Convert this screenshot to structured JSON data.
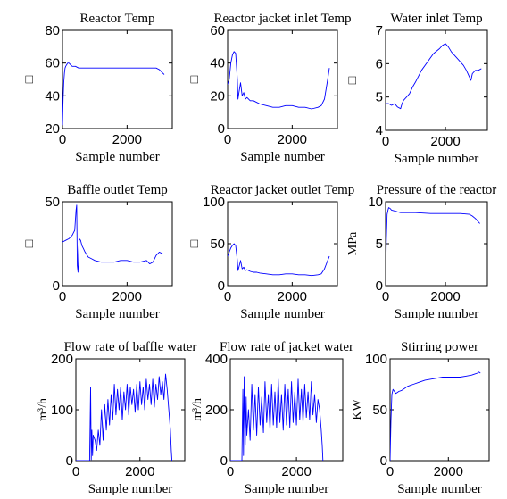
{
  "figure": {
    "series_color": "#0000ff",
    "axis_color": "#000000"
  },
  "chart_data": [
    {
      "type": "line",
      "title": "Reactor Temp",
      "xlabel": "Sample number",
      "ylabel": "□",
      "xlim": [
        0,
        3400
      ],
      "ylim": [
        20,
        80
      ],
      "xticks": [
        0,
        2000
      ],
      "yticks": [
        20,
        40,
        60,
        80
      ],
      "series": [
        {
          "x": [
            0,
            20,
            40,
            60,
            80,
            100,
            130,
            160,
            200,
            250,
            300,
            400,
            500,
            600,
            800,
            1000,
            1500,
            2000,
            2500,
            2900,
            3000,
            3050,
            3100,
            3150
          ],
          "y": [
            22,
            38,
            48,
            54,
            57,
            58,
            59,
            60,
            60,
            59,
            58,
            58,
            57,
            57,
            57,
            57,
            57,
            57,
            57,
            57,
            56,
            55,
            54,
            53
          ]
        }
      ]
    },
    {
      "type": "line",
      "title": "Reactor jacket inlet Temp",
      "xlabel": "Sample number",
      "ylabel": "□",
      "xlim": [
        0,
        3400
      ],
      "ylim": [
        0,
        60
      ],
      "xticks": [
        0,
        2000
      ],
      "yticks": [
        0,
        20,
        40,
        60
      ],
      "series": [
        {
          "x": [
            0,
            50,
            100,
            150,
            200,
            250,
            300,
            320,
            350,
            400,
            450,
            500,
            550,
            600,
            700,
            800,
            900,
            1000,
            1200,
            1400,
            1600,
            1800,
            2000,
            2200,
            2400,
            2600,
            2800,
            2900,
            3000,
            3050,
            3100,
            3150
          ],
          "y": [
            27,
            30,
            40,
            45,
            47,
            46,
            30,
            18,
            22,
            28,
            20,
            22,
            18,
            19,
            17,
            17,
            16,
            15,
            14,
            13,
            13,
            14,
            14,
            13,
            13,
            12,
            13,
            14,
            18,
            24,
            30,
            37
          ]
        }
      ]
    },
    {
      "type": "line",
      "title": "Water inlet Temp",
      "xlabel": "Sample number",
      "ylabel": "□",
      "xlim": [
        0,
        3400
      ],
      "ylim": [
        4,
        7
      ],
      "xticks": [
        0,
        2000
      ],
      "yticks": [
        4,
        5,
        6,
        7
      ],
      "series": [
        {
          "x": [
            0,
            100,
            200,
            300,
            400,
            500,
            550,
            600,
            700,
            800,
            900,
            1000,
            1200,
            1400,
            1600,
            1800,
            1900,
            2000,
            2100,
            2200,
            2400,
            2600,
            2700,
            2800,
            2850,
            2900,
            3000,
            3100,
            3200
          ],
          "y": [
            4.8,
            4.8,
            4.75,
            4.8,
            4.7,
            4.65,
            4.8,
            4.9,
            5.0,
            5.1,
            5.3,
            5.45,
            5.8,
            6.05,
            6.3,
            6.45,
            6.55,
            6.6,
            6.5,
            6.35,
            6.15,
            5.95,
            5.8,
            5.6,
            5.5,
            5.7,
            5.8,
            5.8,
            5.85
          ]
        }
      ]
    },
    {
      "type": "line",
      "title": "Baffle outlet Temp",
      "xlabel": "Sample number",
      "ylabel": "□",
      "xlim": [
        0,
        3400
      ],
      "ylim": [
        0,
        50
      ],
      "xticks": [
        0,
        2000
      ],
      "yticks": [
        0,
        50
      ],
      "series": [
        {
          "x": [
            0,
            100,
            200,
            300,
            380,
            420,
            440,
            460,
            480,
            500,
            520,
            560,
            600,
            650,
            700,
            800,
            900,
            1000,
            1200,
            1400,
            1600,
            1800,
            2000,
            2200,
            2400,
            2600,
            2700,
            2800,
            2900,
            3000,
            3100
          ],
          "y": [
            26,
            27,
            28,
            30,
            33,
            45,
            48,
            12,
            8,
            20,
            28,
            27,
            24,
            22,
            20,
            17,
            16,
            15,
            14,
            14,
            14,
            15,
            15,
            14,
            14,
            15,
            13,
            14,
            18,
            20,
            19
          ]
        }
      ]
    },
    {
      "type": "line",
      "title": "Reactor jacket outlet Temp",
      "xlabel": "Sample number",
      "ylabel": "□",
      "xlim": [
        0,
        3400
      ],
      "ylim": [
        0,
        100
      ],
      "xticks": [
        0,
        2000
      ],
      "yticks": [
        0,
        50,
        100
      ],
      "series": [
        {
          "x": [
            0,
            50,
            100,
            150,
            200,
            250,
            300,
            320,
            350,
            400,
            450,
            500,
            550,
            600,
            700,
            800,
            900,
            1000,
            1200,
            1400,
            1600,
            1800,
            2000,
            2200,
            2400,
            2600,
            2800,
            2900,
            3000,
            3050,
            3100,
            3150
          ],
          "y": [
            35,
            40,
            45,
            48,
            50,
            48,
            30,
            18,
            22,
            30,
            20,
            22,
            18,
            19,
            17,
            16,
            16,
            15,
            14,
            13,
            13,
            14,
            14,
            13,
            13,
            12,
            13,
            14,
            20,
            25,
            30,
            35
          ]
        }
      ]
    },
    {
      "type": "line",
      "title": "Pressure of the reactor",
      "xlabel": "Sample number",
      "ylabel": "MPa",
      "xlim": [
        0,
        3400
      ],
      "ylim": [
        0,
        10
      ],
      "xticks": [
        0,
        2000
      ],
      "yticks": [
        0,
        5,
        10
      ],
      "series": [
        {
          "x": [
            0,
            20,
            50,
            80,
            100,
            150,
            200,
            300,
            400,
            500,
            700,
            1000,
            1500,
            2000,
            2500,
            2800,
            2900,
            3000,
            3100,
            3150
          ],
          "y": [
            0,
            5,
            8.5,
            9.0,
            9.3,
            9.2,
            9.0,
            8.9,
            8.8,
            8.7,
            8.7,
            8.7,
            8.6,
            8.6,
            8.6,
            8.5,
            8.3,
            8.0,
            7.6,
            7.4
          ]
        }
      ]
    },
    {
      "type": "line",
      "title": "Flow rate of baffle water",
      "xlabel": "Sample number",
      "ylabel": "m³/h",
      "xlim": [
        0,
        3400
      ],
      "ylim": [
        0,
        200
      ],
      "xticks": [
        0,
        2000
      ],
      "yticks": [
        0,
        100,
        200
      ],
      "series": [
        {
          "x": [
            0,
            430,
            460,
            480,
            500,
            520,
            540,
            600,
            650,
            700,
            750,
            800,
            850,
            900,
            950,
            1000,
            1050,
            1100,
            1150,
            1200,
            1250,
            1300,
            1350,
            1400,
            1450,
            1500,
            1550,
            1600,
            1650,
            1700,
            1750,
            1800,
            1850,
            1900,
            1950,
            2000,
            2050,
            2100,
            2150,
            2200,
            2250,
            2300,
            2350,
            2400,
            2450,
            2500,
            2550,
            2600,
            2650,
            2700,
            2750,
            2800,
            2850,
            2900,
            2950,
            2980,
            3000
          ],
          "y": [
            0,
            0,
            145,
            2,
            60,
            10,
            50,
            40,
            20,
            60,
            30,
            100,
            40,
            110,
            60,
            120,
            70,
            130,
            80,
            150,
            90,
            140,
            100,
            145,
            80,
            135,
            100,
            150,
            90,
            145,
            110,
            140,
            95,
            150,
            100,
            155,
            110,
            145,
            100,
            160,
            120,
            150,
            110,
            160,
            105,
            150,
            120,
            165,
            130,
            155,
            120,
            170,
            140,
            100,
            60,
            20,
            0
          ]
        }
      ]
    },
    {
      "type": "line",
      "title": "Flow rate of jacket water",
      "xlabel": "Sample number",
      "ylabel": "m³/h",
      "xlim": [
        0,
        3400
      ],
      "ylim": [
        0,
        400
      ],
      "xticks": [
        0,
        2000
      ],
      "yticks": [
        0,
        200,
        400
      ],
      "series": [
        {
          "x": [
            0,
            350,
            380,
            400,
            420,
            450,
            480,
            500,
            550,
            600,
            650,
            700,
            750,
            800,
            850,
            900,
            950,
            1000,
            1050,
            1100,
            1150,
            1200,
            1250,
            1300,
            1350,
            1400,
            1450,
            1500,
            1550,
            1600,
            1650,
            1700,
            1750,
            1800,
            1850,
            1900,
            1950,
            2000,
            2050,
            2100,
            2150,
            2200,
            2250,
            2300,
            2350,
            2400,
            2450,
            2500,
            2550,
            2600,
            2650,
            2700,
            2750,
            2780,
            2800
          ],
          "y": [
            0,
            0,
            280,
            20,
            330,
            60,
            250,
            100,
            200,
            80,
            300,
            120,
            260,
            100,
            290,
            140,
            250,
            110,
            310,
            150,
            260,
            120,
            300,
            140,
            270,
            130,
            320,
            150,
            260,
            120,
            300,
            140,
            280,
            130,
            310,
            150,
            270,
            140,
            320,
            160,
            280,
            150,
            300,
            170,
            270,
            160,
            310,
            180,
            260,
            150,
            240,
            200,
            120,
            60,
            0
          ]
        }
      ]
    },
    {
      "type": "line",
      "title": "Stirring power",
      "xlabel": "Sample number",
      "ylabel": "KW",
      "xlim": [
        0,
        3400
      ],
      "ylim": [
        0,
        100
      ],
      "xticks": [
        0,
        2000
      ],
      "yticks": [
        0,
        50,
        100
      ],
      "series": [
        {
          "x": [
            0,
            30,
            60,
            100,
            150,
            200,
            250,
            300,
            400,
            500,
            600,
            700,
            800,
            1000,
            1200,
            1400,
            1600,
            1800,
            2000,
            2200,
            2400,
            2600,
            2800,
            2900,
            3000,
            3050,
            3100
          ],
          "y": [
            0,
            40,
            65,
            70,
            68,
            66,
            67,
            68,
            69,
            71,
            73,
            74,
            75,
            77,
            79,
            80,
            81,
            82,
            82,
            82,
            82,
            83,
            84,
            85,
            86,
            87,
            86
          ]
        }
      ]
    }
  ]
}
